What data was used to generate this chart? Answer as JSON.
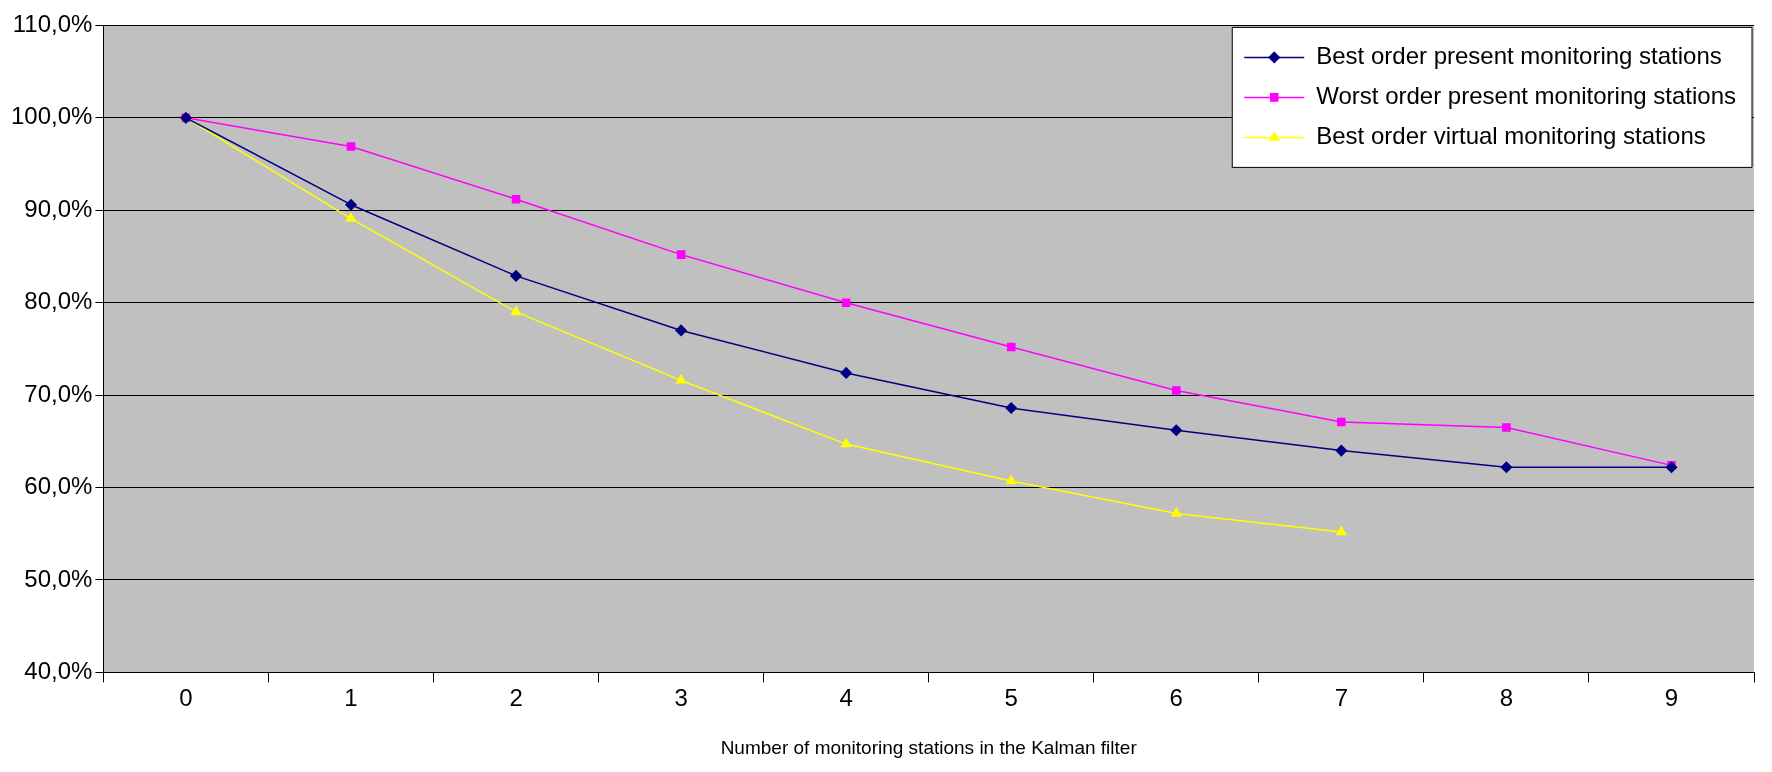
{
  "chart_data": {
    "type": "line",
    "xlabel": "Number of monitoring stations in the Kalman filter",
    "categories": [
      "0",
      "1",
      "2",
      "3",
      "4",
      "5",
      "6",
      "7",
      "8",
      "9"
    ],
    "series": [
      {
        "name": "Best order present monitoring stations",
        "color": "#000080",
        "marker": "diamond",
        "values": [
          100,
          90.6,
          82.9,
          77.0,
          72.4,
          68.6,
          66.2,
          64.0,
          62.2,
          62.2
        ]
      },
      {
        "name": "Worst order present monitoring stations",
        "color": "#ff00ff",
        "marker": "square",
        "values": [
          100,
          96.9,
          91.2,
          85.2,
          80.0,
          75.2,
          70.5,
          67.1,
          66.5,
          62.4
        ]
      },
      {
        "name": "Best order virtual monitoring stations",
        "color": "#ffff00",
        "marker": "triangle",
        "values": [
          100,
          89.1,
          79.0,
          71.6,
          64.7,
          60.7,
          57.2,
          55.2,
          null,
          null
        ]
      }
    ],
    "ylim": [
      40,
      110
    ],
    "yticks": [
      {
        "value": 40,
        "label": "40,0%"
      },
      {
        "value": 50,
        "label": "50,0%"
      },
      {
        "value": 60,
        "label": "60,0%"
      },
      {
        "value": 70,
        "label": "70,0%"
      },
      {
        "value": 80,
        "label": "80,0%"
      },
      {
        "value": 90,
        "label": "90,0%"
      },
      {
        "value": 100,
        "label": "100,0%"
      },
      {
        "value": 110,
        "label": "110,0%"
      }
    ],
    "grid": "y",
    "legend": "top right",
    "line_style": "solid"
  }
}
